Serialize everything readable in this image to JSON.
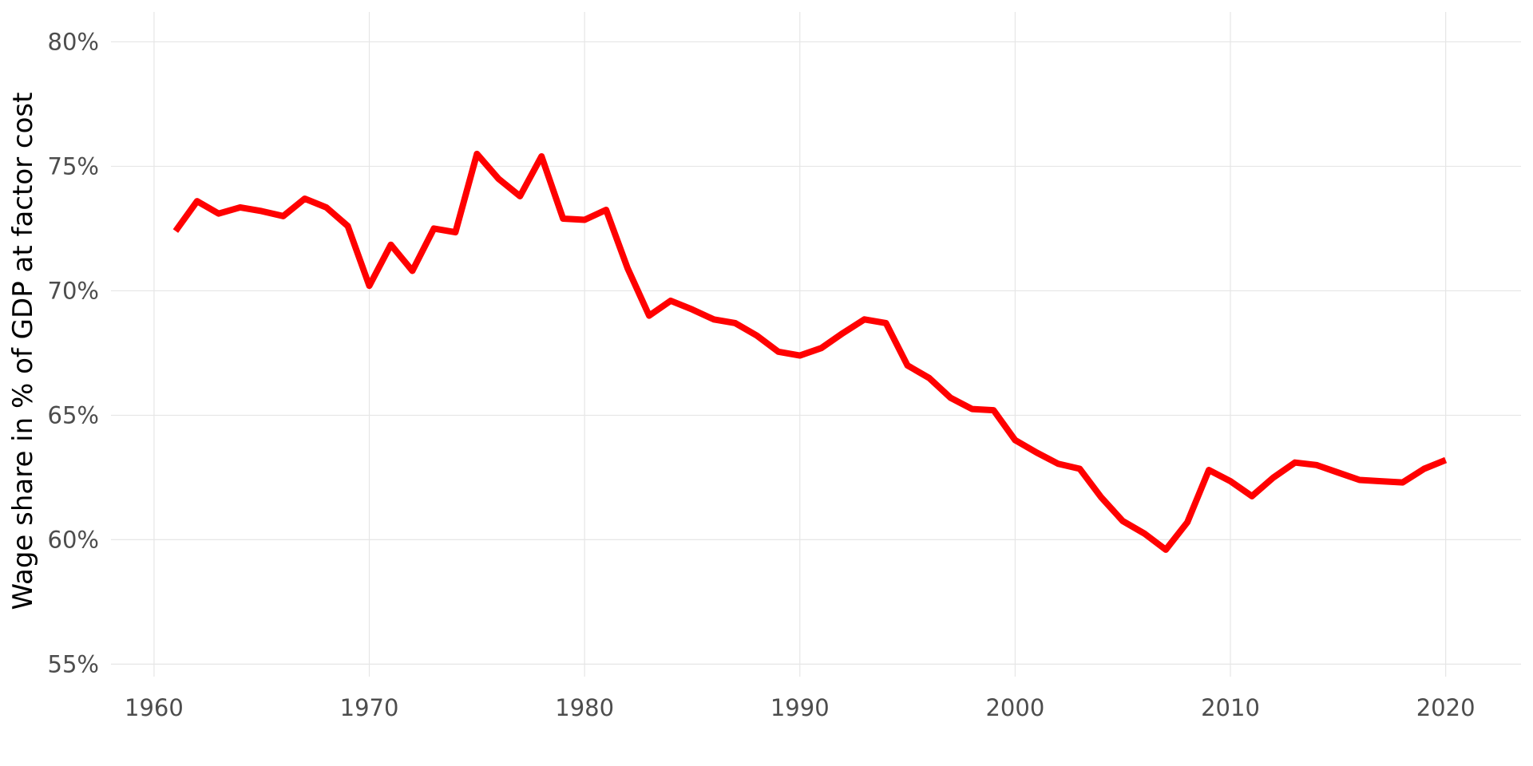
{
  "chart_data": {
    "type": "line",
    "title": "",
    "xlabel": "",
    "ylabel": "Wage share in % of GDP at factor cost",
    "xlim": [
      1958,
      2023.5
    ],
    "ylim": [
      54.5,
      81.2
    ],
    "x_ticks": [
      1960,
      1970,
      1980,
      1990,
      2000,
      2010,
      2020
    ],
    "y_ticks": [
      55,
      60,
      65,
      70,
      75,
      80
    ],
    "y_tick_labels": [
      "55%",
      "60%",
      "65%",
      "70%",
      "75%",
      "80%"
    ],
    "grid": true,
    "legend": "none",
    "colors": {
      "line": "#ff0000",
      "grid": "#e6e6e6",
      "tick_text": "#4d4d4d",
      "axis_title": "#000000"
    },
    "series": [
      {
        "x": [
          1961,
          1962,
          1963,
          1964,
          1965,
          1966,
          1967,
          1968,
          1969,
          1970,
          1971,
          1972,
          1973,
          1974,
          1975,
          1976,
          1977,
          1978,
          1979,
          1980,
          1981,
          1982,
          1983,
          1984,
          1985,
          1986,
          1987,
          1988,
          1989,
          1990,
          1991,
          1992,
          1993,
          1994,
          1995,
          1996,
          1997,
          1998,
          1999,
          2000,
          2001,
          2002,
          2003,
          2004,
          2005,
          2006,
          2007,
          2008,
          2009,
          2010,
          2011,
          2012,
          2013,
          2014,
          2015,
          2016,
          2017,
          2018,
          2019,
          2020
        ],
        "values": [
          72.4,
          73.6,
          73.1,
          73.35,
          73.2,
          73.0,
          73.7,
          73.35,
          72.6,
          70.2,
          71.85,
          70.8,
          72.5,
          72.35,
          75.5,
          74.5,
          73.8,
          75.4,
          72.9,
          72.85,
          73.25,
          70.9,
          69.0,
          69.6,
          69.25,
          68.85,
          68.7,
          68.2,
          67.55,
          67.4,
          67.7,
          68.3,
          68.85,
          68.7,
          67.0,
          66.5,
          65.7,
          65.25,
          65.2,
          64.0,
          63.5,
          63.05,
          62.85,
          61.7,
          60.75,
          60.25,
          59.6,
          60.7,
          62.8,
          62.35,
          61.75,
          62.5,
          63.1,
          63.0,
          62.7,
          62.4,
          62.35,
          62.3,
          62.85,
          63.2
        ]
      }
    ]
  }
}
